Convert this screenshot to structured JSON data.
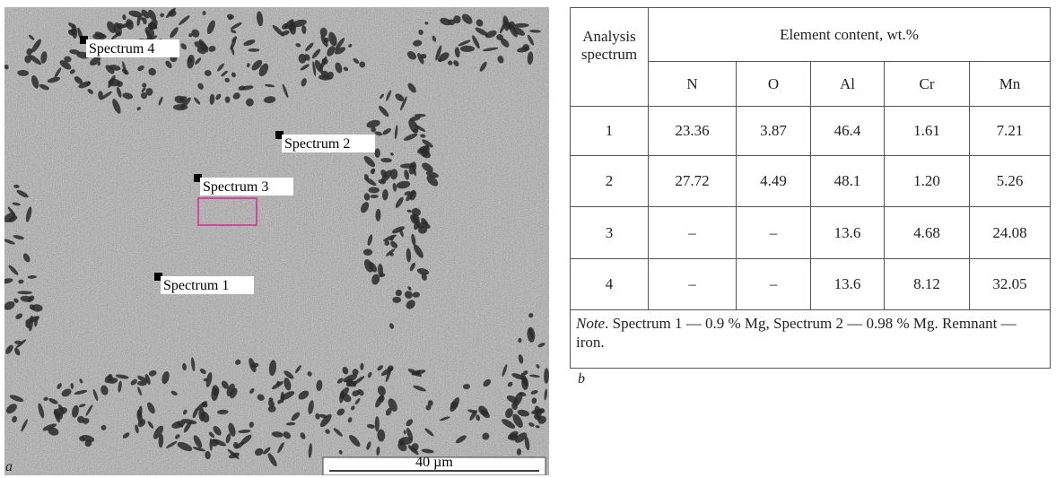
{
  "image": {
    "panel_label": "a",
    "labels": [
      "Spectrum 4",
      "Spectrum 2",
      "Spectrum 3",
      "Spectrum 1"
    ],
    "scale_bar": "40 µm"
  },
  "table": {
    "header": {
      "row_label": "Analysis spectrum",
      "group": "Element content, wt.%",
      "columns": [
        "N",
        "O",
        "Al",
        "Cr",
        "Mn"
      ]
    },
    "rows": [
      [
        "1",
        "23.36",
        "3.87",
        "46.4",
        "1.61",
        "7.21"
      ],
      [
        "2",
        "27.72",
        "4.49",
        "48.1",
        "1.20",
        "5.26"
      ],
      [
        "3",
        "–",
        "–",
        "13.6",
        "4.68",
        "24.08"
      ],
      [
        "4",
        "–",
        "–",
        "13.6",
        "8.12",
        "32.05"
      ]
    ],
    "note_lead": "Note",
    "note": ". Spectrum 1 — 0.9  % Mg, Spectrum 2 — 0.98 % Mg. Remnant — iron.",
    "panel_label": "b"
  }
}
